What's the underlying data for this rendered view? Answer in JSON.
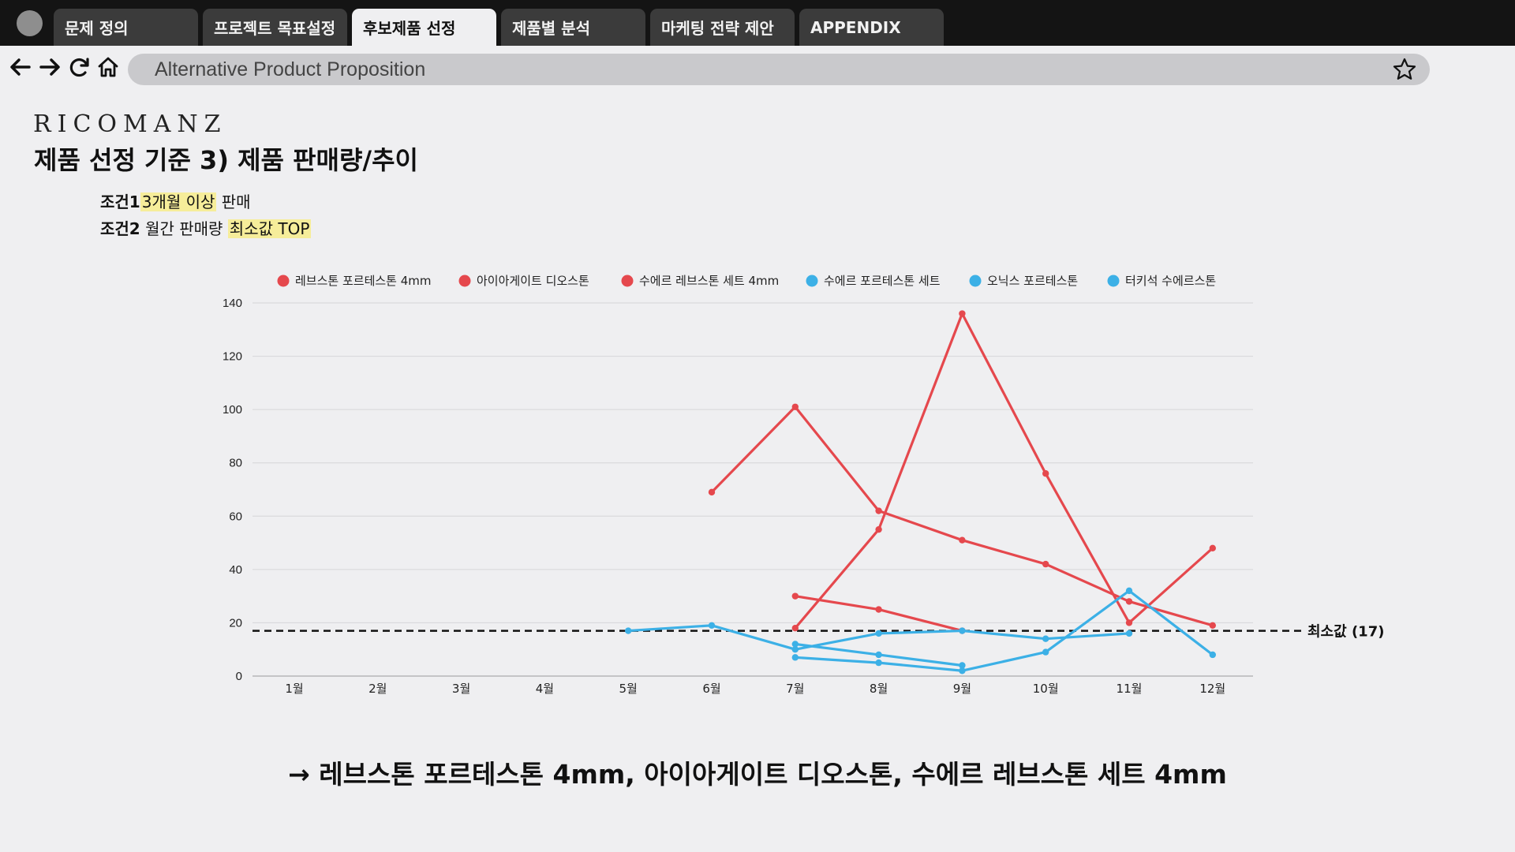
{
  "browser": {
    "tabs": [
      {
        "label": "문제 정의",
        "active": false
      },
      {
        "label": "프로젝트 목표설정",
        "active": false
      },
      {
        "label": "후보제품 선정",
        "active": true
      },
      {
        "label": "제품별 분석",
        "active": false
      },
      {
        "label": "마케팅 전략 제안",
        "active": false
      },
      {
        "label": "APPENDIX",
        "active": false
      }
    ],
    "address": "Alternative Product Proposition",
    "icons": [
      "back-arrow-icon",
      "forward-arrow-icon",
      "reload-icon",
      "home-icon",
      "star-icon"
    ]
  },
  "slide": {
    "logo": "RICOMANZ",
    "title": "제품 선정 기준 3) 제품 판매량/추이",
    "conditions": [
      {
        "label": "조건1",
        "highlight": "3개월 이상",
        "rest": " 판매"
      },
      {
        "label": "조건2",
        "pre": " 월간 판매량 ",
        "highlight": "최소값 TOP"
      }
    ],
    "conclusion": "→ 레브스톤 포르테스톤 4mm, 아이아게이트 디오스톤, 수에르 레브스톤 세트 4mm"
  },
  "colors": {
    "red": "#e5484d",
    "blue": "#3cb0e6",
    "highlight": "#f6ed9a"
  },
  "chart_data": {
    "type": "line",
    "categories": [
      "1월",
      "2월",
      "3월",
      "4월",
      "5월",
      "6월",
      "7월",
      "8월",
      "9월",
      "10월",
      "11월",
      "12월"
    ],
    "ylim": [
      0,
      140
    ],
    "yticks": [
      0,
      20,
      40,
      60,
      80,
      100,
      120,
      140
    ],
    "grid": true,
    "legend_position": "top",
    "series": [
      {
        "name": "레브스톤 포르테스톤 4mm",
        "color": "#e5484d",
        "values": [
          null,
          null,
          null,
          null,
          null,
          69,
          101,
          62,
          51,
          42,
          28,
          19
        ]
      },
      {
        "name": "아이아게이트 디오스톤",
        "color": "#e5484d",
        "values": [
          null,
          null,
          null,
          null,
          null,
          null,
          18,
          55,
          136,
          76,
          20,
          48
        ]
      },
      {
        "name": "수에르 레브스톤 세트 4mm",
        "color": "#e5484d",
        "values": [
          null,
          null,
          null,
          null,
          null,
          null,
          30,
          25,
          17,
          null,
          null,
          null
        ]
      },
      {
        "name": "수에르 포르테스톤 세트",
        "color": "#3cb0e6",
        "values": [
          null,
          null,
          null,
          null,
          17,
          19,
          10,
          16,
          17,
          14,
          16,
          null
        ]
      },
      {
        "name": "오닉스 포르테스톤",
        "color": "#3cb0e6",
        "values": [
          null,
          null,
          null,
          null,
          null,
          null,
          12,
          8,
          4,
          null,
          null,
          null
        ]
      },
      {
        "name": "터키석 수에르스톤",
        "color": "#3cb0e6",
        "values": [
          null,
          null,
          null,
          null,
          null,
          null,
          7,
          5,
          2,
          9,
          32,
          8
        ]
      }
    ],
    "reference_line": {
      "value": 17,
      "label": "최소값 (17)",
      "style": "dashed"
    }
  }
}
